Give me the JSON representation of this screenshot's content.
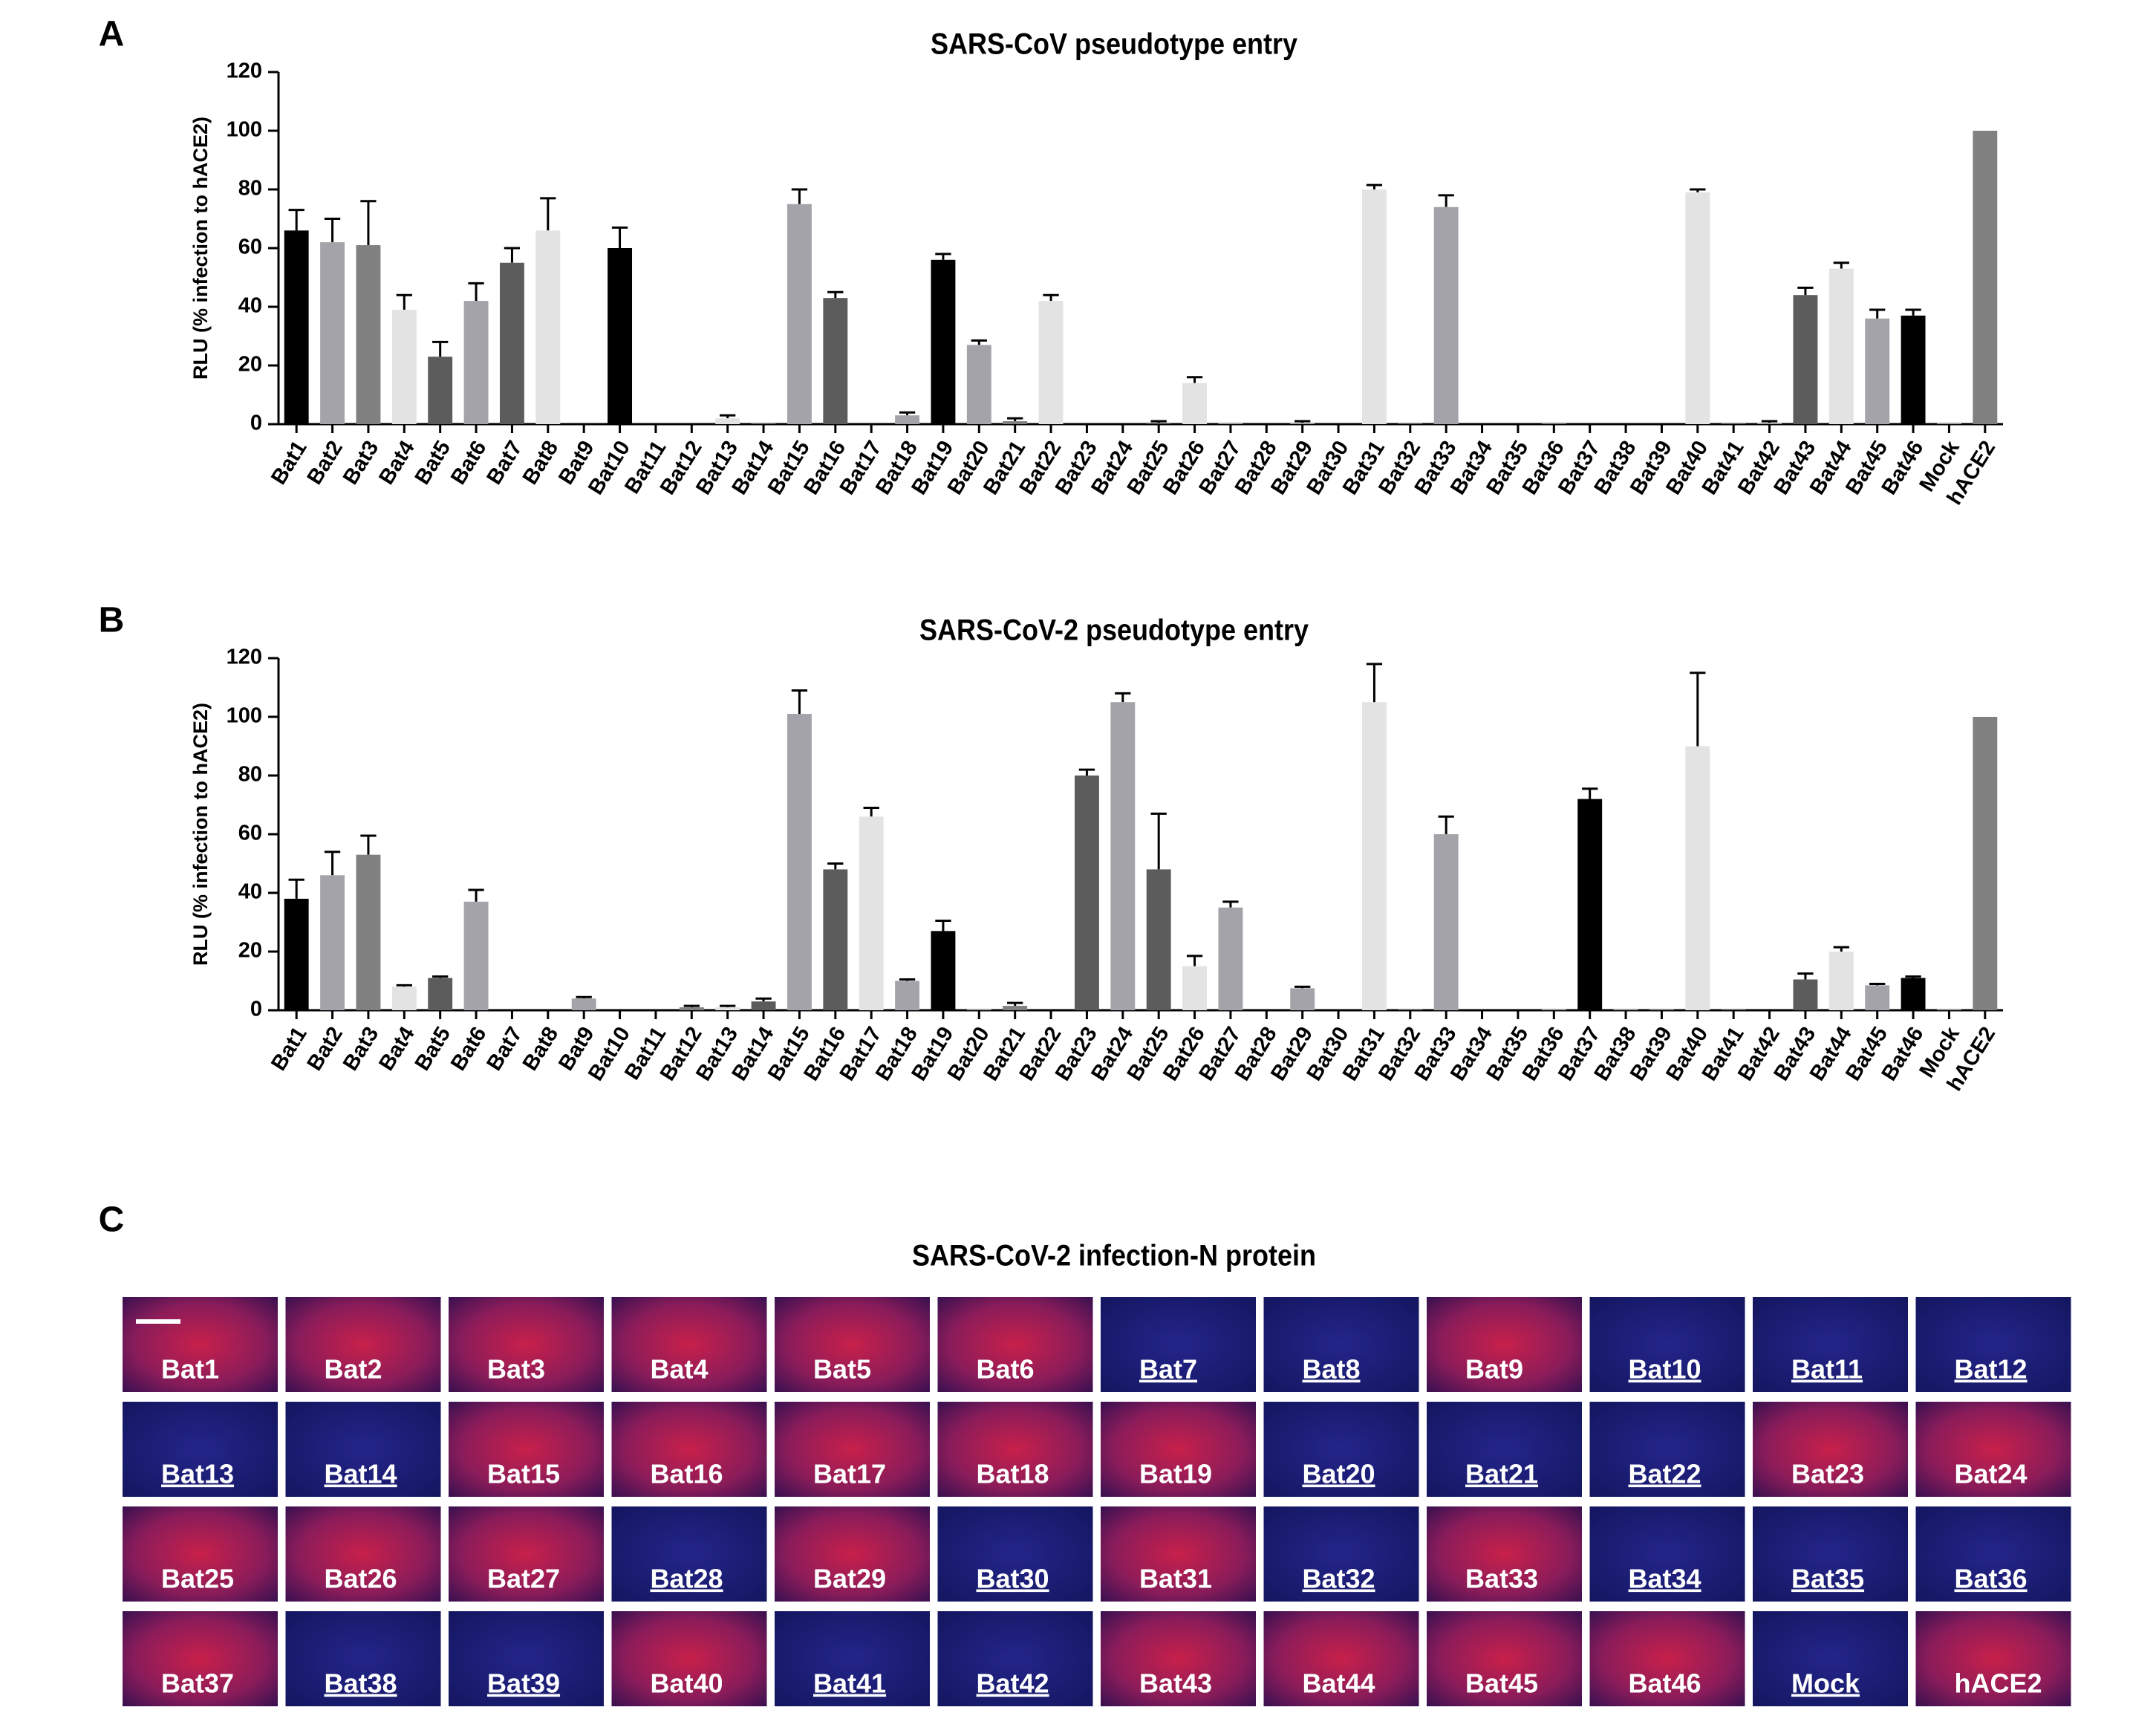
{
  "chart_data": [
    {
      "type": "bar",
      "panel": "A",
      "title": "SARS-CoV pseudotype entry",
      "y_label": "RLU (% infection to hACE2)",
      "categories": [
        "Bat1",
        "Bat2",
        "Bat3",
        "Bat4",
        "Bat5",
        "Bat6",
        "Bat7",
        "Bat8",
        "Bat9",
        "Bat10",
        "Bat11",
        "Bat12",
        "Bat13",
        "Bat14",
        "Bat15",
        "Bat16",
        "Bat17",
        "Bat18",
        "Bat19",
        "Bat20",
        "Bat21",
        "Bat22",
        "Bat23",
        "Bat24",
        "Bat25",
        "Bat26",
        "Bat27",
        "Bat28",
        "Bat29",
        "Bat30",
        "Bat31",
        "Bat32",
        "Bat33",
        "Bat34",
        "Bat35",
        "Bat36",
        "Bat37",
        "Bat38",
        "Bat39",
        "Bat40",
        "Bat41",
        "Bat42",
        "Bat43",
        "Bat44",
        "Bat45",
        "Bat46",
        "Mock",
        "hACE2"
      ],
      "values": [
        66,
        62,
        61,
        39,
        23,
        42,
        55,
        66,
        0,
        60,
        0,
        0,
        2,
        0.3,
        75,
        43,
        0,
        3,
        56,
        27,
        1,
        42,
        0,
        0,
        0.5,
        14,
        0.3,
        0,
        0.5,
        0,
        80,
        0.3,
        74,
        0,
        0,
        0.2,
        0,
        0,
        0,
        79,
        0.3,
        0.5,
        44,
        53,
        36,
        37,
        0.3,
        100
      ],
      "errors": [
        7,
        8,
        15,
        5,
        5,
        6,
        5,
        11,
        0,
        7,
        0,
        0,
        1,
        0,
        5,
        2,
        0,
        1,
        2,
        1.5,
        1,
        2,
        0,
        0,
        0.5,
        2,
        0,
        0,
        0.5,
        0,
        1.5,
        0,
        4,
        0,
        0,
        0,
        0,
        0,
        0,
        1,
        0,
        0.5,
        2.5,
        2,
        3,
        2,
        0,
        0
      ],
      "colors": [
        "#000000",
        "#a3a3a9",
        "#808080",
        "#e3e3e3",
        "#5c5c5c",
        "#a3a3a9",
        "#5c5c5c",
        "#e3e3e3",
        "#a3a3a9",
        "#000000",
        "#a3a3a9",
        "#808080",
        "#e3e3e3",
        "#5c5c5c",
        "#a3a3a9",
        "#5c5c5c",
        "#e3e3e3",
        "#a3a3a9",
        "#000000",
        "#a3a3a9",
        "#808080",
        "#e3e3e3",
        "#5c5c5c",
        "#a3a3a9",
        "#5c5c5c",
        "#e3e3e3",
        "#a3a3a9",
        "#000000",
        "#a3a3a9",
        "#808080",
        "#e3e3e3",
        "#5c5c5c",
        "#a3a3a9",
        "#5c5c5c",
        "#e3e3e3",
        "#a3a3a9",
        "#000000",
        "#a3a3a9",
        "#808080",
        "#e3e3e3",
        "#5c5c5c",
        "#a3a3a9",
        "#5c5c5c",
        "#e3e3e3",
        "#a3a3a9",
        "#000000",
        "#a3a3a9",
        "#808080"
      ],
      "ylim": [
        0,
        120
      ],
      "yticks": [
        0,
        20,
        40,
        60,
        80,
        100,
        120
      ]
    },
    {
      "type": "bar",
      "panel": "B",
      "title": "SARS-CoV-2 pseudotype entry",
      "y_label": "RLU (% infection to hACE2)",
      "categories": [
        "Bat1",
        "Bat2",
        "Bat3",
        "Bat4",
        "Bat5",
        "Bat6",
        "Bat7",
        "Bat8",
        "Bat9",
        "Bat10",
        "Bat11",
        "Bat12",
        "Bat13",
        "Bat14",
        "Bat15",
        "Bat16",
        "Bat17",
        "Bat18",
        "Bat19",
        "Bat20",
        "Bat21",
        "Bat22",
        "Bat23",
        "Bat24",
        "Bat25",
        "Bat26",
        "Bat27",
        "Bat28",
        "Bat29",
        "Bat30",
        "Bat31",
        "Bat32",
        "Bat33",
        "Bat34",
        "Bat35",
        "Bat36",
        "Bat37",
        "Bat38",
        "Bat39",
        "Bat40",
        "Bat41",
        "Bat42",
        "Bat43",
        "Bat44",
        "Bat45",
        "Bat46",
        "Mock",
        "hACE2"
      ],
      "values": [
        38,
        46,
        53,
        8,
        11,
        37,
        0,
        0,
        4,
        0,
        0,
        1,
        1,
        3,
        101,
        48,
        66,
        10,
        27,
        0.5,
        1.5,
        0,
        80,
        105,
        48,
        15,
        35,
        0.3,
        7.5,
        0,
        105,
        0.3,
        60,
        0,
        0,
        0.3,
        72,
        0.3,
        0.3,
        90,
        0.3,
        0,
        10.5,
        20,
        8.5,
        11,
        0.3,
        100
      ],
      "errors": [
        6.5,
        8,
        6.5,
        0.5,
        0.5,
        4,
        0,
        0,
        0.5,
        0,
        0,
        0.5,
        0.5,
        1,
        8,
        2,
        3,
        0.5,
        3.5,
        0,
        1,
        0,
        2,
        3,
        19,
        3.5,
        2,
        0,
        0.5,
        0,
        13,
        0,
        6,
        0,
        0,
        0,
        3.5,
        0,
        0,
        25,
        0,
        0,
        2,
        1.5,
        0.5,
        0.5,
        0,
        0
      ],
      "colors": [
        "#000000",
        "#a3a3a9",
        "#808080",
        "#e3e3e3",
        "#5c5c5c",
        "#a3a3a9",
        "#5c5c5c",
        "#e3e3e3",
        "#a3a3a9",
        "#000000",
        "#a3a3a9",
        "#808080",
        "#e3e3e3",
        "#5c5c5c",
        "#a3a3a9",
        "#5c5c5c",
        "#e3e3e3",
        "#a3a3a9",
        "#000000",
        "#a3a3a9",
        "#808080",
        "#e3e3e3",
        "#5c5c5c",
        "#a3a3a9",
        "#5c5c5c",
        "#e3e3e3",
        "#a3a3a9",
        "#000000",
        "#a3a3a9",
        "#808080",
        "#e3e3e3",
        "#5c5c5c",
        "#a3a3a9",
        "#5c5c5c",
        "#e3e3e3",
        "#a3a3a9",
        "#000000",
        "#a3a3a9",
        "#808080",
        "#e3e3e3",
        "#5c5c5c",
        "#a3a3a9",
        "#5c5c5c",
        "#e3e3e3",
        "#a3a3a9",
        "#000000",
        "#a3a3a9",
        "#808080"
      ],
      "ylim": [
        0,
        120
      ],
      "yticks": [
        0,
        20,
        40,
        60,
        80,
        100,
        120
      ]
    }
  ],
  "panel_c": {
    "panel": "C",
    "title": "SARS-CoV-2 infection-N protein",
    "tiles": [
      {
        "label": "Bat1",
        "underlined": false
      },
      {
        "label": "Bat2",
        "underlined": false
      },
      {
        "label": "Bat3",
        "underlined": false
      },
      {
        "label": "Bat4",
        "underlined": false
      },
      {
        "label": "Bat5",
        "underlined": false
      },
      {
        "label": "Bat6",
        "underlined": false
      },
      {
        "label": "Bat7",
        "underlined": true
      },
      {
        "label": "Bat8",
        "underlined": true
      },
      {
        "label": "Bat9",
        "underlined": false
      },
      {
        "label": "Bat10",
        "underlined": true
      },
      {
        "label": "Bat11",
        "underlined": true
      },
      {
        "label": "Bat12",
        "underlined": true
      },
      {
        "label": "Bat13",
        "underlined": true
      },
      {
        "label": "Bat14",
        "underlined": true
      },
      {
        "label": "Bat15",
        "underlined": false
      },
      {
        "label": "Bat16",
        "underlined": false
      },
      {
        "label": "Bat17",
        "underlined": false
      },
      {
        "label": "Bat18",
        "underlined": false
      },
      {
        "label": "Bat19",
        "underlined": false
      },
      {
        "label": "Bat20",
        "underlined": true
      },
      {
        "label": "Bat21",
        "underlined": true
      },
      {
        "label": "Bat22",
        "underlined": true
      },
      {
        "label": "Bat23",
        "underlined": false
      },
      {
        "label": "Bat24",
        "underlined": false
      },
      {
        "label": "Bat25",
        "underlined": false
      },
      {
        "label": "Bat26",
        "underlined": false
      },
      {
        "label": "Bat27",
        "underlined": false
      },
      {
        "label": "Bat28",
        "underlined": true
      },
      {
        "label": "Bat29",
        "underlined": false
      },
      {
        "label": "Bat30",
        "underlined": true
      },
      {
        "label": "Bat31",
        "underlined": false
      },
      {
        "label": "Bat32",
        "underlined": true
      },
      {
        "label": "Bat33",
        "underlined": false
      },
      {
        "label": "Bat34",
        "underlined": true
      },
      {
        "label": "Bat35",
        "underlined": true
      },
      {
        "label": "Bat36",
        "underlined": true
      },
      {
        "label": "Bat37",
        "underlined": false
      },
      {
        "label": "Bat38",
        "underlined": true
      },
      {
        "label": "Bat39",
        "underlined": true
      },
      {
        "label": "Bat40",
        "underlined": false
      },
      {
        "label": "Bat41",
        "underlined": true
      },
      {
        "label": "Bat42",
        "underlined": true
      },
      {
        "label": "Bat43",
        "underlined": false
      },
      {
        "label": "Bat44",
        "underlined": false
      },
      {
        "label": "Bat45",
        "underlined": false
      },
      {
        "label": "Bat46",
        "underlined": false
      },
      {
        "label": "Mock",
        "underlined": true
      },
      {
        "label": "hACE2",
        "underlined": false
      }
    ]
  }
}
